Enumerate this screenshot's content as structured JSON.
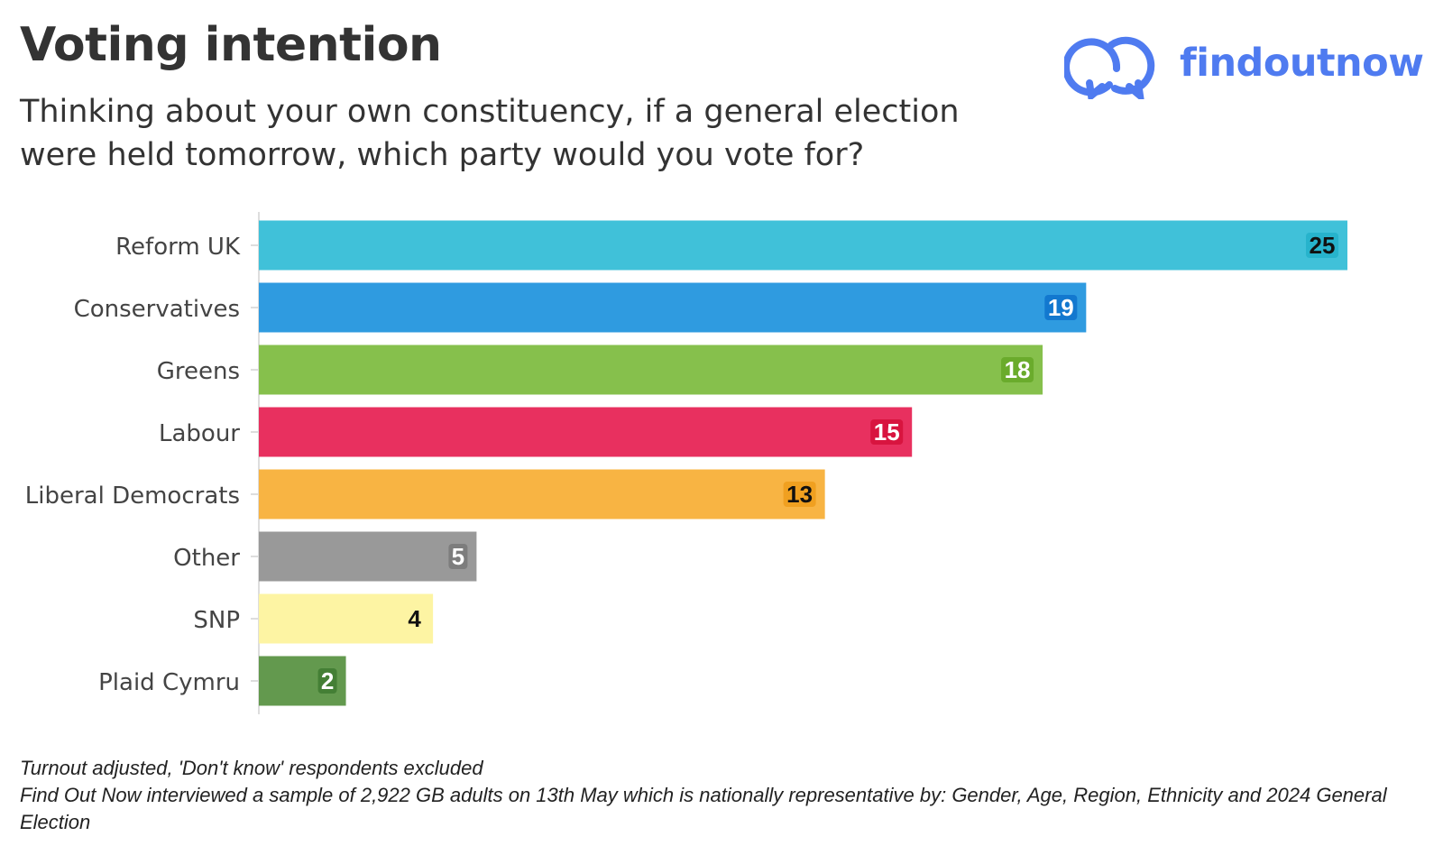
{
  "title": "Voting intention",
  "subtitle": "Thinking about your own constituency, if a general election were held tomorrow, which party would you vote for?",
  "logo": {
    "text": "findoutnow",
    "icon": "interlinked-speech-rings-icon",
    "color": "#4f7bf0"
  },
  "footnotes": {
    "line1": "Turnout adjusted, 'Don't know' respondents excluded",
    "line2": "Find Out Now interviewed a sample of 2,922 GB adults on 13th May which is nationally representative by: Gender, Age, Region, Ethnicity and 2024 General Election"
  },
  "chart_data": {
    "type": "bar",
    "orientation": "horizontal",
    "categories": [
      "Reform UK",
      "Conservatives",
      "Greens",
      "Labour",
      "Liberal Democrats",
      "Other",
      "SNP",
      "Plaid Cymru"
    ],
    "values": [
      25,
      19,
      18,
      15,
      13,
      5,
      4,
      2
    ],
    "colors": [
      "#40c1d9",
      "#2f9be0",
      "#86c04c",
      "#e8305f",
      "#f8b443",
      "#999999",
      "#fdf4a3",
      "#63994e"
    ],
    "label_backgrounds": [
      "#27b3cc",
      "#1278cf",
      "#6aab2c",
      "#d8143f",
      "#f0a020",
      "#7d7d7d",
      "#fdf4a3",
      "#447f35"
    ],
    "label_colors": [
      "#111111",
      "#ffffff",
      "#ffffff",
      "#ffffff",
      "#111111",
      "#ffffff",
      "#111111",
      "#ffffff"
    ],
    "xlim": [
      0,
      25
    ],
    "grid": false,
    "legend": "none"
  }
}
